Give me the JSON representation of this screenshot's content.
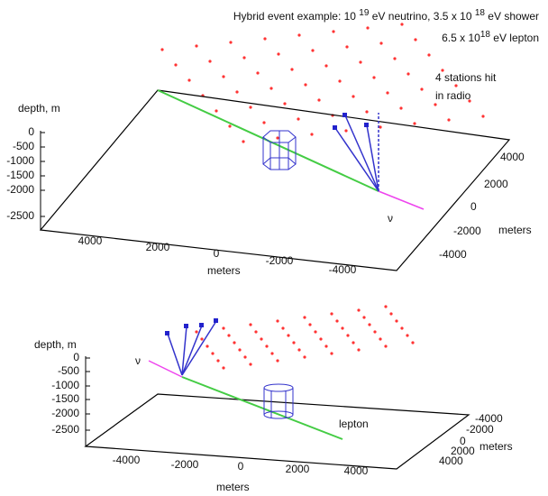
{
  "header": {
    "line1": [
      "Hybrid event example: 10 ",
      "19",
      " eV neutrino, 3.5 x 10 ",
      "18",
      " eV shower"
    ],
    "line2": [
      "6.5 x 10",
      "18",
      " eV lepton"
    ]
  },
  "top_plot": {
    "note": [
      "4 stations hit",
      "in radio"
    ],
    "z_label": "depth, m",
    "z_ticks": [
      0,
      -500,
      -1000,
      -1500,
      -2000,
      -2500
    ],
    "x_ticks": [
      4000,
      2000,
      0,
      -2000,
      -4000
    ],
    "x_label": "meters",
    "y_ticks": [
      4000,
      2000,
      0,
      -2000,
      -4000
    ],
    "y_label": "meters",
    "nu_label": "ν"
  },
  "bottom_plot": {
    "z_label": "depth, m",
    "z_ticks": [
      0,
      -500,
      -1000,
      -1500,
      -2000,
      -2500
    ],
    "x_ticks": [
      -4000,
      -2000,
      0,
      2000,
      4000
    ],
    "x_label": "meters",
    "y_ticks": [
      -4000,
      -2000,
      0,
      2000,
      4000
    ],
    "y_label": "meters",
    "nu_label": "ν",
    "lepton_label": "lepton"
  }
}
